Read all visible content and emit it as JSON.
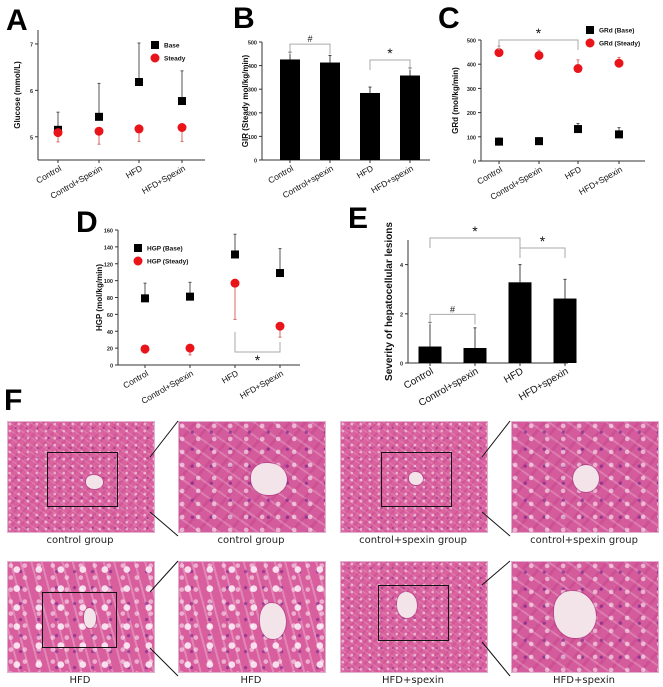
{
  "figure": {
    "panel_letters": {
      "A": "A",
      "B": "B",
      "C": "C",
      "D": "D",
      "E": "E",
      "F": "F"
    }
  },
  "chart_data": [
    {
      "panel": "A",
      "type": "scatter",
      "title": "",
      "xlabel": "",
      "ylabel": "Glucose (mmol/L)",
      "categories": [
        "Control",
        "Control+Spexin",
        "HFD",
        "HFD+Spexin"
      ],
      "yticks": [
        "5",
        "6",
        "7"
      ],
      "ylim": [
        4.5,
        7.3
      ],
      "legend": [
        "Base",
        "Steady"
      ],
      "legend_position": "upper right",
      "series": [
        {
          "name": "Base",
          "marker": "square",
          "color": "#000000",
          "values": [
            5.15,
            5.43,
            6.18,
            5.77
          ],
          "err_upper": [
            5.53,
            6.15,
            7.02,
            6.42
          ]
        },
        {
          "name": "Steady",
          "marker": "circle",
          "color": "#e8141a",
          "values": [
            5.09,
            5.12,
            5.17,
            5.2
          ],
          "err_lower": [
            4.89,
            4.84,
            4.9,
            4.9
          ]
        }
      ],
      "annotations": []
    },
    {
      "panel": "B",
      "type": "bar",
      "title": "",
      "xlabel": "",
      "ylabel": "GIR (Steady mol/kg/min)",
      "categories": [
        "Control",
        "Control+spexin",
        "HFD",
        "HFD+spexin"
      ],
      "yticks": [
        "0",
        "100",
        "200",
        "300",
        "400",
        "500"
      ],
      "ylim": [
        0,
        500
      ],
      "values": [
        426,
        413,
        284,
        358
      ],
      "err_upper": [
        457,
        443,
        309,
        390
      ],
      "annotations": [
        {
          "label": "#",
          "from": "Control",
          "to": "Control+spexin"
        },
        {
          "label": "*",
          "from": "HFD",
          "to": "HFD+spexin"
        }
      ]
    },
    {
      "panel": "C",
      "type": "scatter",
      "title": "",
      "xlabel": "",
      "ylabel": "GRd (mol/kg/min)",
      "categories": [
        "Control",
        "Control+Spexin",
        "HFD",
        "HFD+Spexin"
      ],
      "yticks": [
        "0",
        "100",
        "200",
        "300",
        "400",
        "500"
      ],
      "ylim": [
        0,
        500
      ],
      "legend": [
        "GRd (Base)",
        "GRd (Steady)"
      ],
      "legend_position": "upper right",
      "series": [
        {
          "name": "GRd (Base)",
          "marker": "square",
          "color": "#000000",
          "values": [
            80,
            82,
            132,
            110
          ],
          "err_upper": [
            95,
            96,
            155,
            138
          ]
        },
        {
          "name": "GRd (Steady)",
          "marker": "circle",
          "color": "#e8141a",
          "values": [
            448,
            436,
            382,
            404
          ],
          "err_upper": [
            475,
            458,
            418,
            428
          ]
        }
      ],
      "annotations": [
        {
          "label": "*",
          "from": "Control",
          "to": "HFD"
        }
      ]
    },
    {
      "panel": "D",
      "type": "scatter",
      "title": "",
      "xlabel": "",
      "ylabel": "HGP (mol/kg/min)",
      "categories": [
        "Control",
        "Control+Spexin",
        "HFD",
        "HFD+Spexin"
      ],
      "yticks": [
        "0",
        "20",
        "40",
        "60",
        "80",
        "100",
        "120",
        "140",
        "160"
      ],
      "ylim": [
        0,
        160
      ],
      "legend": [
        "HGP (Base)",
        "HGP (Steady)"
      ],
      "legend_position": "upper left",
      "series": [
        {
          "name": "HGP (Base)",
          "marker": "square",
          "color": "#000000",
          "values": [
            79,
            81,
            131,
            109
          ],
          "err_upper": [
            97,
            98,
            155,
            138
          ]
        },
        {
          "name": "HGP (Steady)",
          "marker": "circle",
          "color": "#e8141a",
          "values": [
            19,
            20,
            97,
            46
          ],
          "err_lower": [
            14,
            12,
            54,
            33
          ]
        }
      ],
      "annotations": [
        {
          "label": "*",
          "from": "HFD",
          "to": "HFD+Spexin",
          "position": "below"
        }
      ]
    },
    {
      "panel": "E",
      "type": "bar",
      "title": "",
      "xlabel": "",
      "ylabel": "Severity of hepatocellular lesions",
      "categories": [
        "Control",
        "Control+spexin",
        "HFD",
        "HFD+spexin"
      ],
      "yticks": [
        "0",
        "2",
        "4"
      ],
      "ylim": [
        0,
        5
      ],
      "values": [
        0.67,
        0.61,
        3.28,
        2.62
      ],
      "err_upper": [
        1.65,
        1.43,
        4.0,
        3.4
      ],
      "annotations": [
        {
          "label": "#",
          "from": "Control",
          "to": "Control+spexin"
        },
        {
          "label": "*",
          "from": "Control",
          "to": "HFD"
        },
        {
          "label": "*",
          "from": "HFD",
          "to": "HFD+spexin"
        }
      ]
    }
  ],
  "histology": {
    "panel": "F",
    "captions": [
      "control group",
      "control group",
      "control+spexin group",
      "control+spexin group",
      "HFD",
      "HFD",
      "HFD+spexin",
      "HFD+spexin"
    ]
  }
}
